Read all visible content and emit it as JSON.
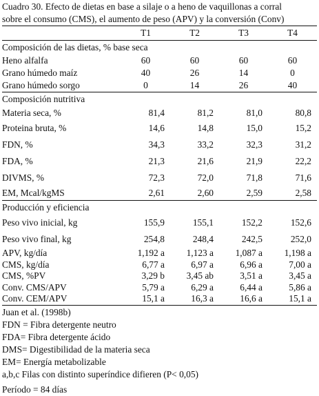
{
  "caption": {
    "line1": "Cuadro 30. Efecto de dietas en base a silaje o a heno de vaquillonas a corral",
    "line2": "sobre el consumo (CMS), el aumento de peso (APV) y la conversión (Conv)"
  },
  "columns": [
    "T1",
    "T2",
    "T3",
    "T4"
  ],
  "sections": {
    "diet": "Composición de las dietas, % base seca",
    "nutritive": "Composición nutritiva",
    "production": "Producción y eficiencia"
  },
  "diet_rows": [
    {
      "label": "Heno alfalfa",
      "values": [
        "60",
        "60",
        "60",
        "60"
      ]
    },
    {
      "label": "Grano húmedo maíz",
      "values": [
        "40",
        "26",
        "14",
        "0"
      ]
    },
    {
      "label": "Grano húmedo sorgo",
      "values": [
        "0",
        "14",
        "26",
        "40"
      ]
    }
  ],
  "nutritive_rows": [
    {
      "label": "Materia seca, %",
      "values": [
        "81,4",
        "81,2",
        "81,0",
        "80,8"
      ]
    },
    {
      "label": "Proteina bruta, %",
      "values": [
        "14,6",
        "14,8",
        "15,0",
        "15,2"
      ]
    },
    {
      "label": "FDN, %",
      "values": [
        "34,3",
        "33,2",
        "32,3",
        "31,2"
      ]
    },
    {
      "label": "FDA, %",
      "values": [
        "21,3",
        "21,6",
        "21,9",
        "22,2"
      ]
    },
    {
      "label": "DIVMS, %",
      "values": [
        "72,3",
        "72,0",
        "71,8",
        "71,6"
      ]
    },
    {
      "label": "EM, Mcal/kgMS",
      "values": [
        "2,61",
        "2,60",
        "2,59",
        "2,58"
      ]
    }
  ],
  "production_rows": [
    {
      "label": "Peso vivo inicial, kg",
      "values": [
        "155,9",
        "155,1",
        "152,2",
        "152,6"
      ]
    },
    {
      "label": "Peso vivo final, kg",
      "values": [
        "254,8",
        "248,4",
        "242,5",
        "252,0"
      ]
    },
    {
      "label": "APV, kg/día",
      "values": [
        "1,192 a",
        "1,123 a",
        "1,087 a",
        "1,198 a"
      ]
    },
    {
      "label": "CMS, kg/día",
      "values": [
        "6,77 a",
        "6,97 a",
        "6,96 a",
        "7,00 a"
      ]
    },
    {
      "label": "CMS, %PV",
      "values": [
        "3,29 b",
        "3,45 ab",
        "3,51 a",
        "3,45 a"
      ]
    },
    {
      "label": "Conv. CMS/APV",
      "values": [
        "5,79 a",
        "6,29 a",
        "6,44 a",
        "5,86 a"
      ]
    },
    {
      "label": "Conv. CEM/APV",
      "values": [
        "15,1 a",
        "16,3 a",
        "16,6 a",
        "15,1 a"
      ]
    }
  ],
  "footnotes": [
    "Juan et al. (1998b)",
    "FDN = Fibra detergente neutro",
    "FDA= Fibra detergente ácido",
    "DMS= Digestibilidad de la materia seca",
    "EM= Energía metabolizable",
    "a,b,c Filas con distinto superíndice difieren (P< 0,05)",
    "Período = 84 días"
  ]
}
